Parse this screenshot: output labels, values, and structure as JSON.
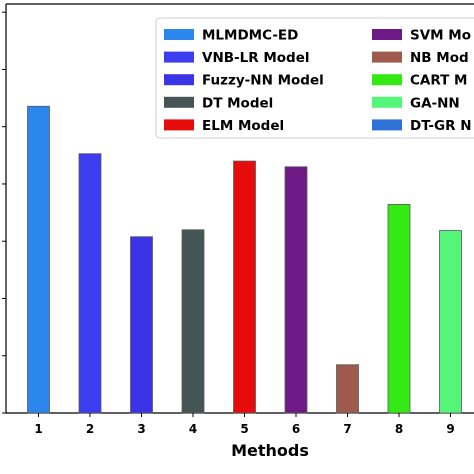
{
  "chart_data": {
    "type": "bar",
    "xlabel": "Methods",
    "ylabel": "",
    "title": "",
    "categories": [
      "1",
      "2",
      "3",
      "4",
      "5",
      "6",
      "7",
      "8",
      "9"
    ],
    "ylim": [
      0,
      100
    ],
    "y_ticks": [
      0,
      14,
      28,
      42,
      56,
      70,
      84,
      98
    ],
    "grid": false,
    "legend_position": "top-right",
    "series": [
      {
        "name": "MLMDMC-ED",
        "x": "1",
        "value": 75.0,
        "color": "#2b86ee"
      },
      {
        "name": "VNB-LR Model",
        "x": "2",
        "value": 63.4,
        "color": "#3c3cf0"
      },
      {
        "name": "Fuzzy-NN Model",
        "x": "3",
        "value": 43.1,
        "color": "#3b33e6"
      },
      {
        "name": "DT Model",
        "x": "4",
        "value": 44.8,
        "color": "#455556"
      },
      {
        "name": "ELM Model",
        "x": "5",
        "value": 61.6,
        "color": "#e60c0c"
      },
      {
        "name": "SVM Mo",
        "x": "6",
        "value": 60.2,
        "color": "#6e1a86"
      },
      {
        "name": "NB Mod",
        "x": "7",
        "value": 11.8,
        "color": "#9e5a4c"
      },
      {
        "name": "CART M",
        "x": "8",
        "value": 51.0,
        "color": "#33ea14"
      },
      {
        "name": "GA-NN",
        "x": "9",
        "value": 44.6,
        "color": "#55f57a"
      },
      {
        "name": "DT-GR N",
        "x": "10",
        "value": null,
        "color": "#2e72d8"
      }
    ]
  }
}
